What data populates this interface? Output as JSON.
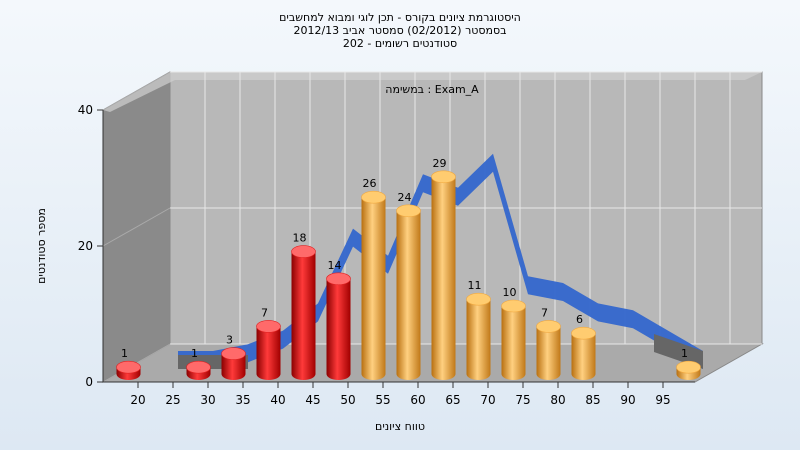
{
  "chart_data": {
    "type": "bar",
    "title_lines": [
      "היסטוגרמת ציונים בקורס - תכן לוגי ומבוא למחשבים",
      "בסמסטר  (02/2012)  סמסטר אביב 2012/13",
      "סטודנטים רשומים - 202"
    ],
    "subtitle": "במשימה : Exam_A",
    "xlabel": "טווח ציונים",
    "ylabel": "מספר סטודנטים",
    "ylim": [
      0,
      40
    ],
    "yticks": [
      "0",
      "20",
      "40"
    ],
    "xticks": [
      "20",
      "25",
      "30",
      "35",
      "40",
      "45",
      "50",
      "55",
      "60",
      "65",
      "70",
      "75",
      "80",
      "85",
      "90",
      "95"
    ],
    "bins": [
      {
        "from": 15,
        "to": 20,
        "value": 1,
        "label": "1",
        "color": "#e02020"
      },
      {
        "from": 20,
        "to": 25,
        "value": 0,
        "label": "",
        "color": "#e02020"
      },
      {
        "from": 25,
        "to": 30,
        "value": 1,
        "label": "1",
        "color": "#e02020"
      },
      {
        "from": 30,
        "to": 35,
        "value": 3,
        "label": "3",
        "color": "#e02020"
      },
      {
        "from": 35,
        "to": 40,
        "value": 7,
        "label": "7",
        "color": "#e02020"
      },
      {
        "from": 40,
        "to": 45,
        "value": 18,
        "label": "18",
        "color": "#e02020"
      },
      {
        "from": 45,
        "to": 50,
        "value": 14,
        "label": "14",
        "color": "#e02020"
      },
      {
        "from": 50,
        "to": 55,
        "value": 26,
        "label": "26",
        "color": "#f0a840"
      },
      {
        "from": 55,
        "to": 60,
        "value": 24,
        "label": "24",
        "color": "#f0a840"
      },
      {
        "from": 60,
        "to": 65,
        "value": 29,
        "label": "29",
        "color": "#f0a840"
      },
      {
        "from": 65,
        "to": 70,
        "value": 11,
        "label": "11",
        "color": "#f0a840"
      },
      {
        "from": 70,
        "to": 75,
        "value": 10,
        "label": "10",
        "color": "#f0a840"
      },
      {
        "from": 75,
        "to": 80,
        "value": 7,
        "label": "7",
        "color": "#f0a840"
      },
      {
        "from": 80,
        "to": 85,
        "value": 6,
        "label": "6",
        "color": "#f0a840"
      },
      {
        "from": 85,
        "to": 90,
        "value": 0,
        "label": "",
        "color": "#f0a840"
      },
      {
        "from": 90,
        "to": 95,
        "value": 0,
        "label": "",
        "color": "#f0a840"
      },
      {
        "from": 95,
        "to": 100,
        "value": 1,
        "label": "1",
        "color": "#f0a840"
      }
    ],
    "trend_line": {
      "color": "#3366cc",
      "points": [
        [
          20,
          0
        ],
        [
          25,
          0
        ],
        [
          30,
          1
        ],
        [
          35,
          3
        ],
        [
          40,
          7
        ],
        [
          45,
          18
        ],
        [
          50,
          14
        ],
        [
          55,
          26
        ],
        [
          60,
          24
        ],
        [
          65,
          29
        ],
        [
          70,
          11
        ],
        [
          75,
          10
        ],
        [
          80,
          7
        ],
        [
          85,
          6
        ],
        [
          90,
          3
        ],
        [
          95,
          0
        ]
      ]
    },
    "grid": true,
    "legend": "none"
  }
}
